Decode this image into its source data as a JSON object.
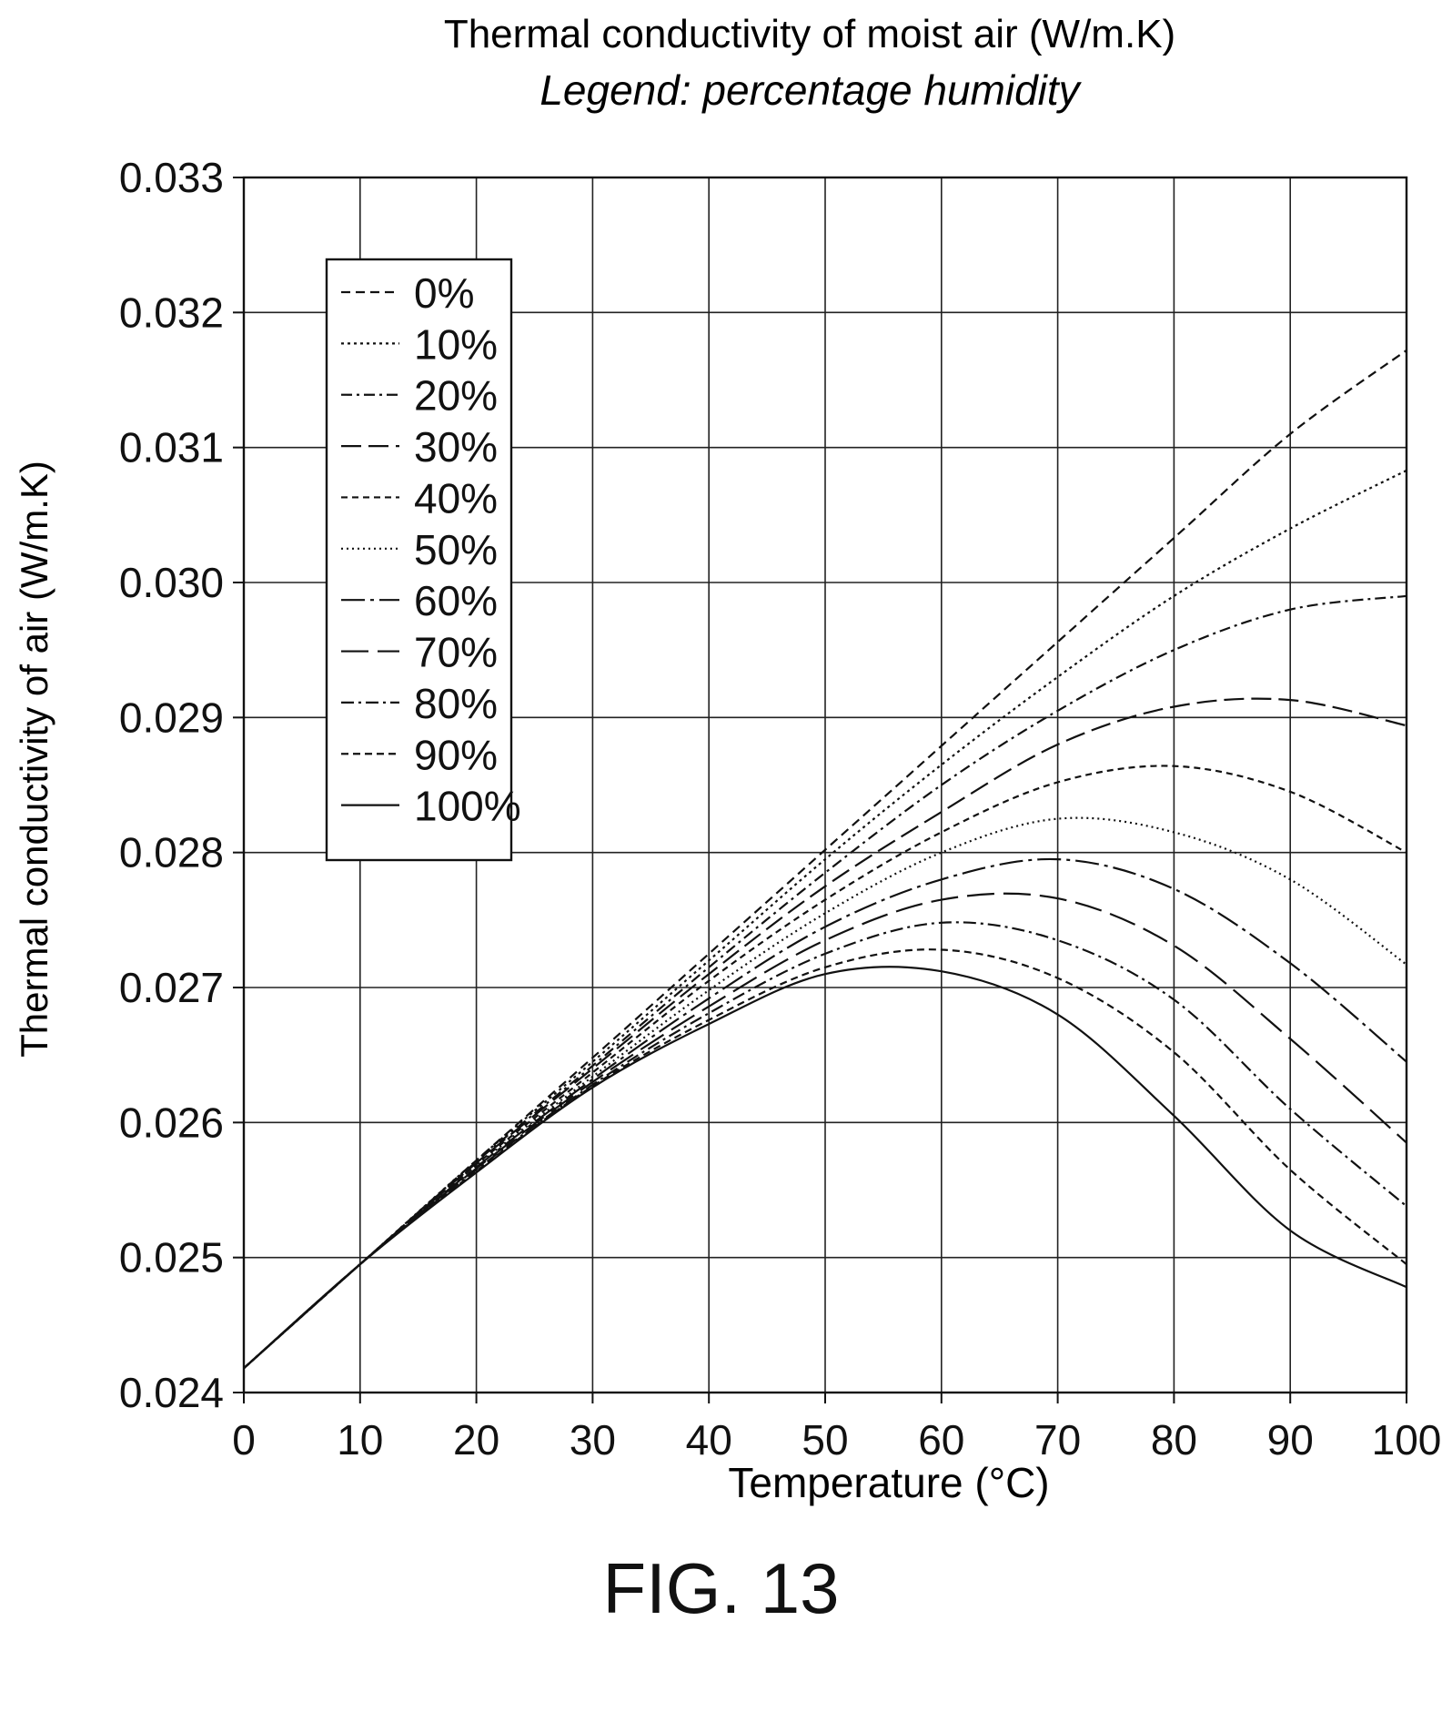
{
  "figure_label": "FIG. 13",
  "chart_data": {
    "type": "line",
    "title": "Thermal conductivity of moist air (W/m.K)",
    "subtitle": "Legend: percentage humidity",
    "xlabel": "Temperature (°C)",
    "ylabel": "Thermal conductivity of air (W/m.K)",
    "xlim": [
      0,
      100
    ],
    "ylim": [
      0.024,
      0.033
    ],
    "x_ticks": [
      "0",
      "10",
      "20",
      "30",
      "40",
      "50",
      "60",
      "70",
      "80",
      "90",
      "100"
    ],
    "y_ticks": [
      "0.024",
      "0.025",
      "0.026",
      "0.027",
      "0.028",
      "0.029",
      "0.030",
      "0.031",
      "0.032",
      "0.033"
    ],
    "grid": true,
    "legend_position": "top-left",
    "x": [
      0,
      10,
      20,
      30,
      40,
      50,
      60,
      70,
      80,
      90,
      100
    ],
    "series": [
      {
        "name": "0%",
        "dash": "10 6",
        "values": [
          0.02418,
          0.02495,
          0.02572,
          0.02648,
          0.02725,
          0.02802,
          0.02879,
          0.02956,
          0.03033,
          0.0311,
          0.03172
        ]
      },
      {
        "name": "10%",
        "dash": "3 4",
        "values": [
          0.02418,
          0.02495,
          0.02572,
          0.02645,
          0.0272,
          0.02795,
          0.02865,
          0.0293,
          0.0299,
          0.0304,
          0.03083
        ]
      },
      {
        "name": "20%",
        "dash": "12 5 3 5",
        "values": [
          0.02418,
          0.02495,
          0.02571,
          0.02642,
          0.02715,
          0.02785,
          0.0285,
          0.02905,
          0.0295,
          0.0298,
          0.0299
        ]
      },
      {
        "name": "30%",
        "dash": "22 8",
        "values": [
          0.02418,
          0.02495,
          0.0257,
          0.0264,
          0.0271,
          0.02775,
          0.0283,
          0.0288,
          0.02908,
          0.02913,
          0.02894
        ]
      },
      {
        "name": "40%",
        "dash": "7 5",
        "values": [
          0.02418,
          0.02495,
          0.02569,
          0.02637,
          0.02705,
          0.02765,
          0.02815,
          0.02852,
          0.02864,
          0.02845,
          0.028
        ]
      },
      {
        "name": "50%",
        "dash": "2 4",
        "values": [
          0.02418,
          0.02495,
          0.02568,
          0.02634,
          0.02698,
          0.02755,
          0.028,
          0.02825,
          0.02815,
          0.0278,
          0.02717
        ]
      },
      {
        "name": "60%",
        "dash": "26 6 4 6",
        "values": [
          0.02418,
          0.02495,
          0.02567,
          0.02632,
          0.02692,
          0.02745,
          0.0278,
          0.02795,
          0.02773,
          0.02718,
          0.02645
        ]
      },
      {
        "name": "70%",
        "dash": "30 10",
        "values": [
          0.02418,
          0.02495,
          0.02566,
          0.0263,
          0.02686,
          0.02735,
          0.02765,
          0.02766,
          0.02731,
          0.02662,
          0.02585
        ]
      },
      {
        "name": "80%",
        "dash": "14 5 3 5",
        "values": [
          0.02418,
          0.02495,
          0.02565,
          0.02628,
          0.02681,
          0.02725,
          0.02748,
          0.02735,
          0.02691,
          0.0261,
          0.02538
        ]
      },
      {
        "name": "90%",
        "dash": "8 5",
        "values": [
          0.02418,
          0.02495,
          0.02564,
          0.02627,
          0.02676,
          0.02715,
          0.02728,
          0.02707,
          0.02652,
          0.02565,
          0.02495
        ]
      },
      {
        "name": "100%",
        "dash": "",
        "values": [
          0.02418,
          0.02495,
          0.02563,
          0.02626,
          0.02673,
          0.0271,
          0.02712,
          0.0268,
          0.02605,
          0.0252,
          0.02478
        ]
      }
    ]
  }
}
